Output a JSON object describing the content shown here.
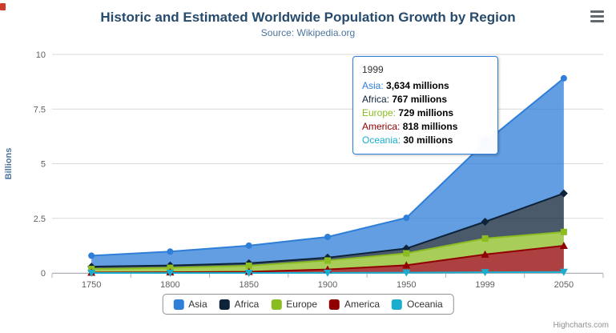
{
  "chart_data": {
    "type": "area",
    "stacked": true,
    "title": "Historic and Estimated Worldwide Population Growth by Region",
    "subtitle": "Source: Wikipedia.org",
    "categories": [
      "1750",
      "1800",
      "1850",
      "1900",
      "1950",
      "1999",
      "2050"
    ],
    "unit": "millions",
    "ylabel": "Billions",
    "xlabel": "",
    "ylim": [
      0,
      10
    ],
    "yticks": [
      0,
      2.5,
      5,
      7.5,
      10
    ],
    "grid": true,
    "legend_position": "bottom",
    "series": [
      {
        "name": "Asia",
        "color": "#2f7ed8",
        "marker": "circle",
        "values": [
          502,
          635,
          809,
          947,
          1402,
          3634,
          5268
        ]
      },
      {
        "name": "Africa",
        "color": "#0d233a",
        "marker": "diamond",
        "values": [
          106,
          107,
          111,
          133,
          221,
          767,
          1766
        ]
      },
      {
        "name": "Europe",
        "color": "#8bbc21",
        "marker": "square",
        "values": [
          163,
          203,
          276,
          408,
          547,
          729,
          628
        ]
      },
      {
        "name": "America",
        "color": "#910000",
        "marker": "triangle",
        "values": [
          18,
          31,
          54,
          156,
          339,
          818,
          1201
        ]
      },
      {
        "name": "Oceania",
        "color": "#1aadce",
        "marker": "triangle-down",
        "values": [
          2,
          2,
          2,
          6,
          13,
          30,
          46
        ]
      }
    ],
    "hover_point": {
      "series": "Asia",
      "category": "1999"
    }
  },
  "tooltip": {
    "header": "1999",
    "rows": [
      {
        "name": "Asia",
        "value": "3,634 millions"
      },
      {
        "name": "Africa",
        "value": "767 millions"
      },
      {
        "name": "Europe",
        "value": "729 millions"
      },
      {
        "name": "America",
        "value": "818 millions"
      },
      {
        "name": "Oceania",
        "value": "30 millions"
      }
    ]
  },
  "credits": {
    "label": "Highcharts.com"
  }
}
